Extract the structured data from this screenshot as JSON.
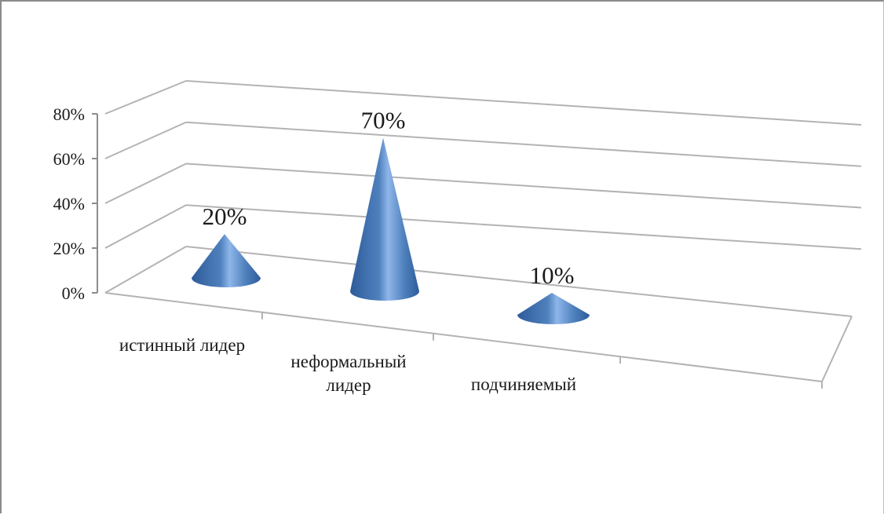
{
  "chart_data": {
    "type": "bar",
    "style": "3d-cone",
    "categories": [
      "истинный  лидер",
      "неформальный лидер",
      "подчиняемый"
    ],
    "category_lines": [
      [
        "истинный  лидер"
      ],
      [
        "неформальный",
        "лидер"
      ],
      [
        "подчиняемый"
      ]
    ],
    "values": [
      0.2,
      0.7,
      0.1
    ],
    "data_labels": [
      "20%",
      "70%",
      "10%"
    ],
    "y_ticks": [
      "0%",
      "20%",
      "40%",
      "60%",
      "80%"
    ],
    "y_tick_values": [
      0,
      0.2,
      0.4,
      0.6,
      0.8
    ],
    "ylim": [
      0,
      0.8
    ],
    "grid": true,
    "legend": "none",
    "title": "",
    "xlabel": "",
    "ylabel": "",
    "colors": {
      "cone_dark": "#2f5b9a",
      "cone_mid": "#4f81bd",
      "cone_light": "#8fb6ea",
      "grid": "#b3b3b3",
      "axis": "#8c8c8c"
    }
  }
}
